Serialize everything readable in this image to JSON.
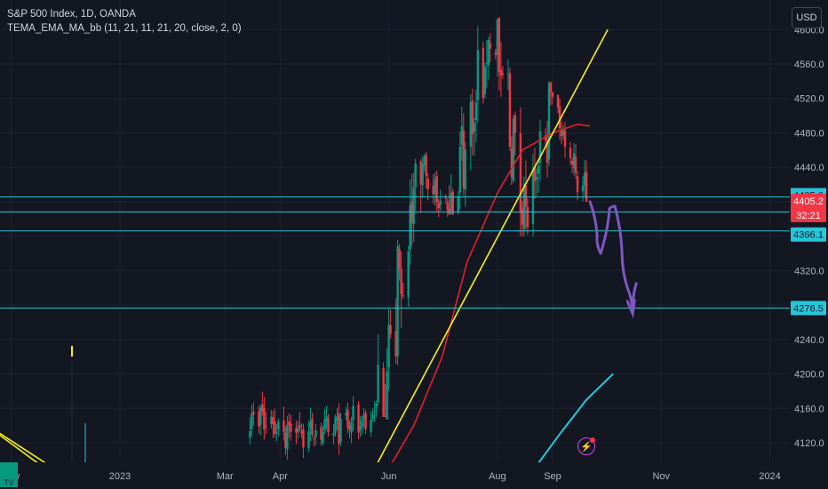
{
  "header": {
    "symbol_line": "S&P 500 Index, 1D, OANDA",
    "indicator_line": "TEMA_EMA_MA_bb (11, 21, 11, 21, 20, close, 2, 0)",
    "currency_button": "USD",
    "logo_text": "TV"
  },
  "colors": {
    "background": "#131722",
    "up": "#089981",
    "down": "#f23645",
    "trendline": "#f7f01f",
    "ema": "#e0202a",
    "ma": "#26c6da",
    "level_line": "#26c6da",
    "drawing": "#7e57c2"
  },
  "chart_data": {
    "type": "candlestick",
    "title": "S&P 500 Index, 1D, OANDA",
    "ylim": [
      4090,
      4625
    ],
    "y_ticks": [
      4120,
      4160,
      4200,
      4240,
      4280,
      4320,
      4360,
      4400,
      4440,
      4480,
      4520,
      4560,
      4600
    ],
    "y_tick_labels": [
      "4120.0",
      "4160.0",
      "4200.0",
      "4240.0",
      "4280.0",
      "4320.0",
      "4360.0",
      "4400.0",
      "4440.0",
      "4480.0",
      "4520.0",
      "4560.0",
      "4600.0"
    ],
    "x_labels": [
      "Nov",
      "2023",
      "Mar",
      "Apr",
      "Jun",
      "Aug",
      "Sep",
      "Nov",
      "2024"
    ],
    "price_segments": [
      {
        "from": "2023-03-15",
        "to": "2023-04-20",
        "start": 4150,
        "end": 4130,
        "high": 4196,
        "low": 4078
      },
      {
        "from": "2023-04-20",
        "to": "2023-05-25",
        "start": 4130,
        "end": 4150,
        "high": 4178,
        "low": 4098
      },
      {
        "from": "2023-05-25",
        "to": "2023-06-20",
        "start": 4150,
        "end": 4430,
        "high": 4450,
        "low": 4150
      },
      {
        "from": "2023-06-20",
        "to": "2023-07-05",
        "start": 4430,
        "end": 4390,
        "high": 4458,
        "low": 4355
      },
      {
        "from": "2023-07-05",
        "to": "2023-07-31",
        "start": 4390,
        "end": 4590,
        "high": 4610,
        "low": 4385
      },
      {
        "from": "2023-07-31",
        "to": "2023-08-18",
        "start": 4590,
        "end": 4380,
        "high": 4612,
        "low": 4360
      },
      {
        "from": "2023-08-18",
        "to": "2023-09-01",
        "start": 4380,
        "end": 4515,
        "high": 4540,
        "low": 4350
      },
      {
        "from": "2023-09-01",
        "to": "2023-09-12",
        "start": 4515,
        "end": 4455,
        "high": 4525,
        "low": 4430
      },
      {
        "from": "2023-09-12",
        "to": "2023-09-21",
        "start": 4455,
        "end": 4405,
        "high": 4515,
        "low": 4400
      }
    ],
    "ema_line": {
      "x": [
        "2023-06-01",
        "2023-06-15",
        "2023-07-01",
        "2023-07-15",
        "2023-08-01",
        "2023-08-15",
        "2023-09-01",
        "2023-09-15",
        "2023-09-22"
      ],
      "y": [
        4090,
        4140,
        4220,
        4330,
        4410,
        4460,
        4480,
        4490,
        4488
      ]
    },
    "ma_line": {
      "x": [
        "2023-08-20",
        "2023-09-05",
        "2023-09-20",
        "2023-10-05"
      ],
      "y": [
        4085,
        4130,
        4170,
        4200
      ]
    },
    "trendlines": [
      {
        "x": [
          "2023-05-24",
          "2023-10-02"
        ],
        "y": [
          4090,
          4600
        ]
      },
      {
        "x": [
          "2022-09-10",
          "2022-11-25"
        ],
        "y": [
          4192,
          4090
        ]
      },
      {
        "x": [
          "2022-09-10",
          "2022-11-20"
        ],
        "y": [
          4198,
          4090
        ]
      }
    ],
    "horizontal_levels": [
      4405.6,
      4388.1,
      4366.1,
      4276.5
    ],
    "level_labels": [
      "4405.6",
      "4388.1",
      "4366.1",
      "4276.5"
    ],
    "last_price": {
      "value": 4405.2,
      "label": "4405.2",
      "countdown": "32:21"
    },
    "drawing": {
      "type": "freehand-arrow",
      "x": [
        "2023-09-22",
        "2023-09-26",
        "2023-09-28",
        "2023-10-03",
        "2023-10-06",
        "2023-10-10",
        "2023-10-13",
        "2023-10-16",
        "2023-10-18"
      ],
      "y": [
        4400,
        4360,
        4340,
        4392,
        4395,
        4340,
        4300,
        4270,
        4305
      ]
    }
  }
}
